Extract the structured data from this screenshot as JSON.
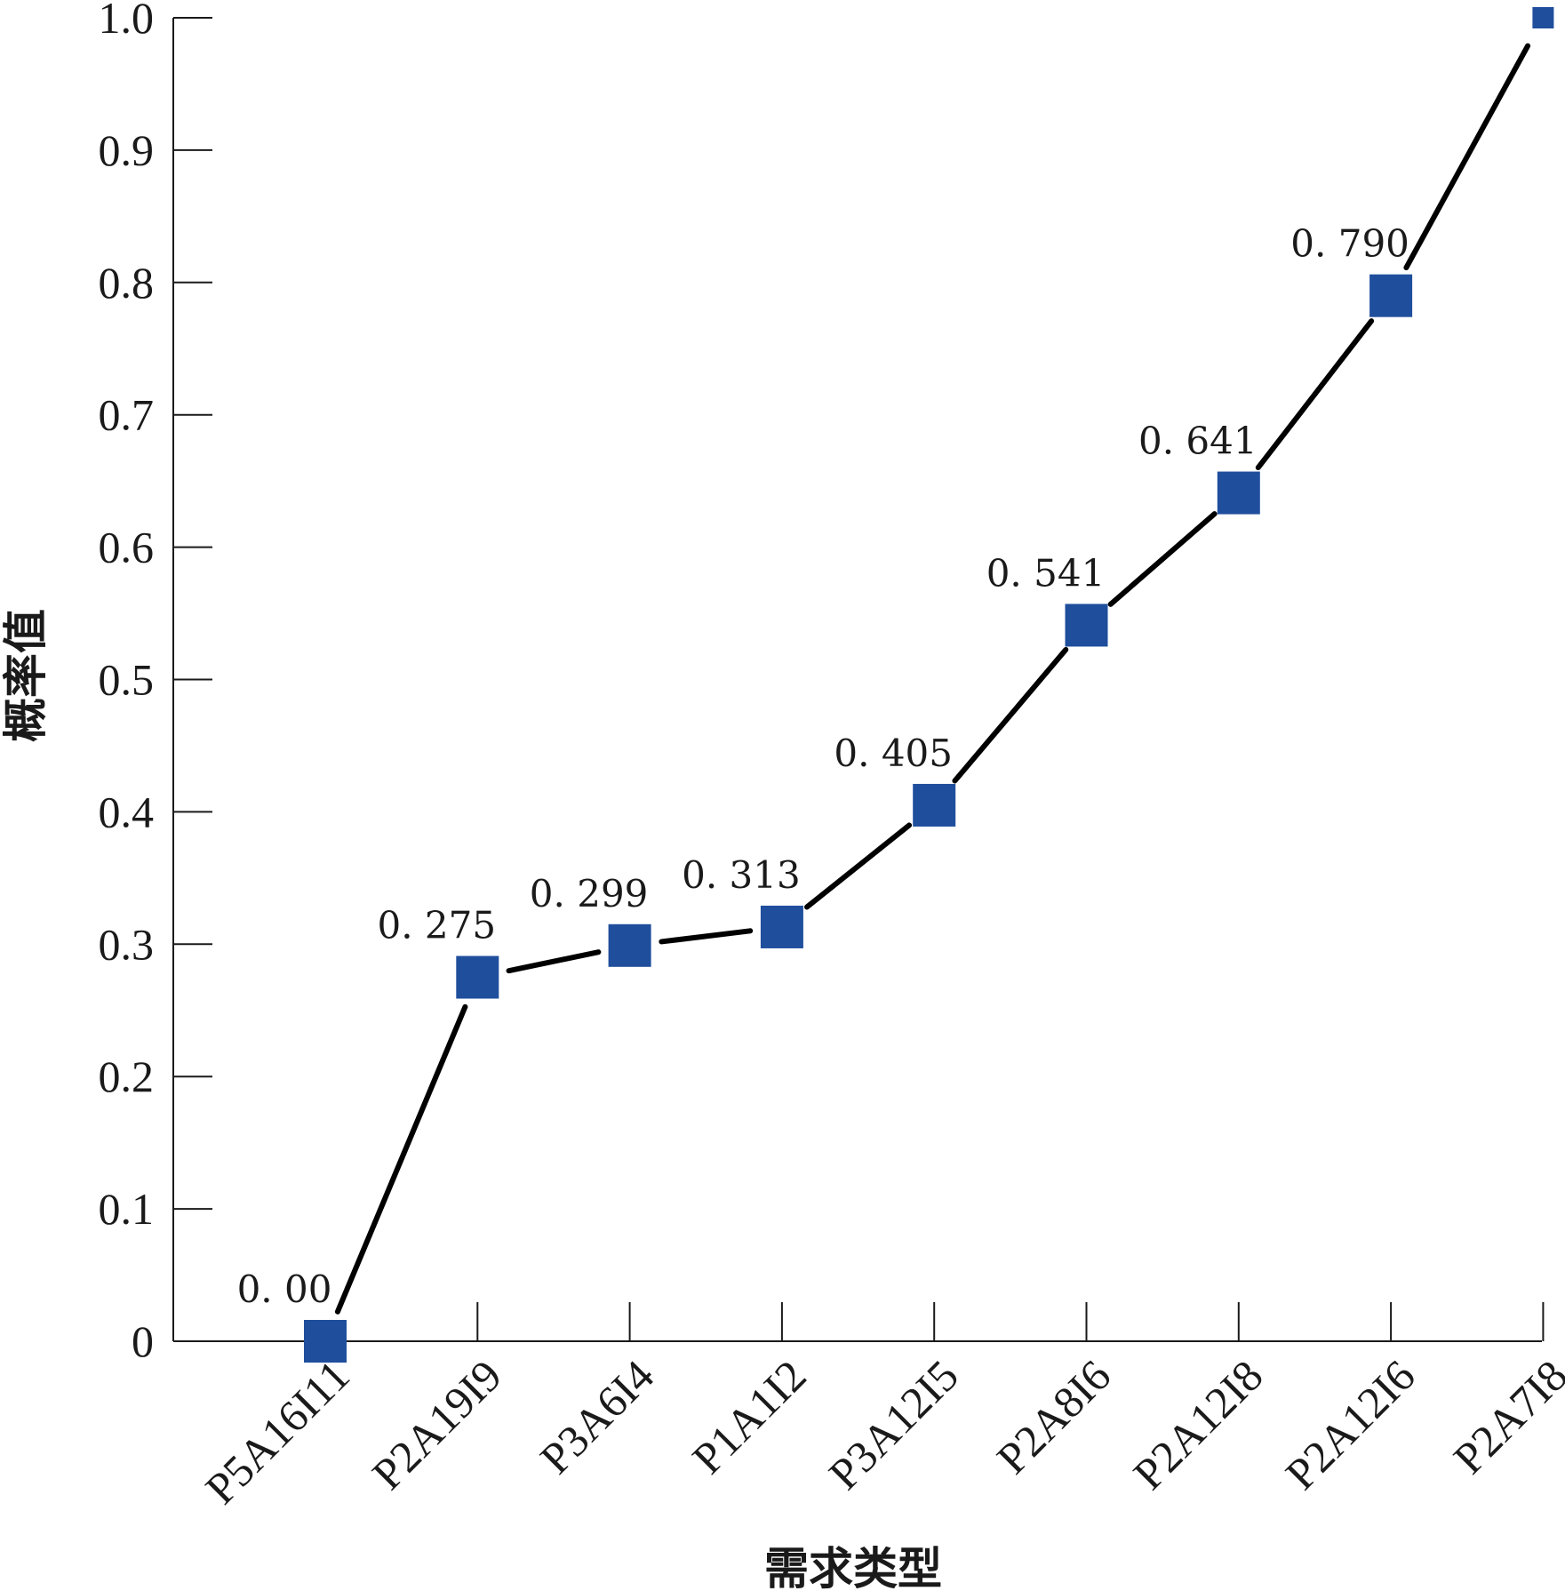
{
  "chart_data": {
    "type": "line",
    "xlabel": "需求类型",
    "ylabel": "概率值",
    "ylim": [
      0,
      1.0
    ],
    "yticks": [
      {
        "value": 0,
        "label": "0"
      },
      {
        "value": 0.1,
        "label": "0.1"
      },
      {
        "value": 0.2,
        "label": "0.2"
      },
      {
        "value": 0.3,
        "label": "0.3"
      },
      {
        "value": 0.4,
        "label": "0.4"
      },
      {
        "value": 0.5,
        "label": "0.5"
      },
      {
        "value": 0.6,
        "label": "0.6"
      },
      {
        "value": 0.7,
        "label": "0.7"
      },
      {
        "value": 0.8,
        "label": "0.8"
      },
      {
        "value": 0.9,
        "label": "0.9"
      },
      {
        "value": 1.0,
        "label": "1.0"
      }
    ],
    "categories": [
      "P5A16I11",
      "P2A19I9",
      "P3A6I4",
      "P1A1I2",
      "P3A12I5",
      "P2A8I6",
      "P2A12I8",
      "P2A12I6",
      "P2A7I8"
    ],
    "values": [
      0.0,
      0.275,
      0.299,
      0.313,
      0.405,
      0.541,
      0.641,
      0.79,
      1.0
    ],
    "data_labels": [
      "0. 00",
      "0. 275",
      "0. 299",
      "0. 313",
      "0. 405",
      "0. 541",
      "0. 641",
      "0. 790",
      ""
    ],
    "grid": false,
    "colors": {
      "marker": "#1f4e9c",
      "line": "#000000",
      "axis": "#1a1a1a"
    }
  }
}
